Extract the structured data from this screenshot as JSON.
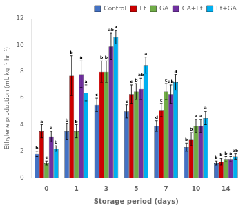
{
  "chart_data": {
    "type": "bar",
    "categories": [
      "0",
      "1",
      "3",
      "5",
      "7",
      "10",
      "14"
    ],
    "series": [
      {
        "name": "Control",
        "color": "#4472C4",
        "values": [
          1.8,
          3.5,
          5.5,
          5.0,
          3.9,
          2.3,
          1.1
        ],
        "errors": [
          0.2,
          0.6,
          0.5,
          0.5,
          0.4,
          0.3,
          0.15
        ],
        "labels": [
          "b",
          "b",
          "c",
          "c",
          "d",
          "b",
          "b"
        ]
      },
      {
        "name": "Et",
        "color": "#CC0000",
        "values": [
          3.5,
          7.7,
          8.0,
          6.3,
          5.1,
          2.9,
          1.2
        ],
        "errors": [
          0.5,
          1.5,
          0.8,
          0.7,
          0.5,
          0.5,
          0.25
        ],
        "labels": [
          "a",
          "b",
          "b",
          "c",
          "c",
          "b",
          "b"
        ]
      },
      {
        "name": "GA",
        "color": "#70AD47",
        "values": [
          1.1,
          3.5,
          8.0,
          6.5,
          6.5,
          3.9,
          1.4
        ],
        "errors": [
          0.15,
          0.5,
          0.8,
          0.6,
          0.6,
          0.5,
          0.2
        ],
        "labels": [
          "c",
          "b",
          "b",
          "b",
          "c",
          "a",
          "b"
        ]
      },
      {
        "name": "GA+Et",
        "color": "#7030A0",
        "values": [
          3.1,
          7.8,
          9.9,
          6.7,
          6.3,
          3.9,
          1.4
        ],
        "errors": [
          0.4,
          1.0,
          1.0,
          0.8,
          0.7,
          0.5,
          0.2
        ],
        "labels": [
          "a",
          "a",
          "ab",
          "ab",
          "ab",
          "a",
          "a"
        ]
      },
      {
        "name": "Et+GA",
        "color": "#00B0F0",
        "values": [
          2.2,
          6.4,
          10.6,
          8.5,
          7.2,
          4.5,
          1.6
        ],
        "errors": [
          0.2,
          0.6,
          0.5,
          0.6,
          0.6,
          0.5,
          0.2
        ],
        "labels": [
          "b",
          "a",
          "a",
          "a",
          "a",
          "a",
          "ab"
        ]
      }
    ],
    "xlabel": "Storage period (days)",
    "ylabel": "Ethylene production (mL kg⁻¹ hr⁻¹)",
    "ylim": [
      0,
      12
    ],
    "yticks": [
      0,
      2,
      4,
      6,
      8,
      10,
      12
    ],
    "grid": false,
    "legend": "upper right"
  }
}
